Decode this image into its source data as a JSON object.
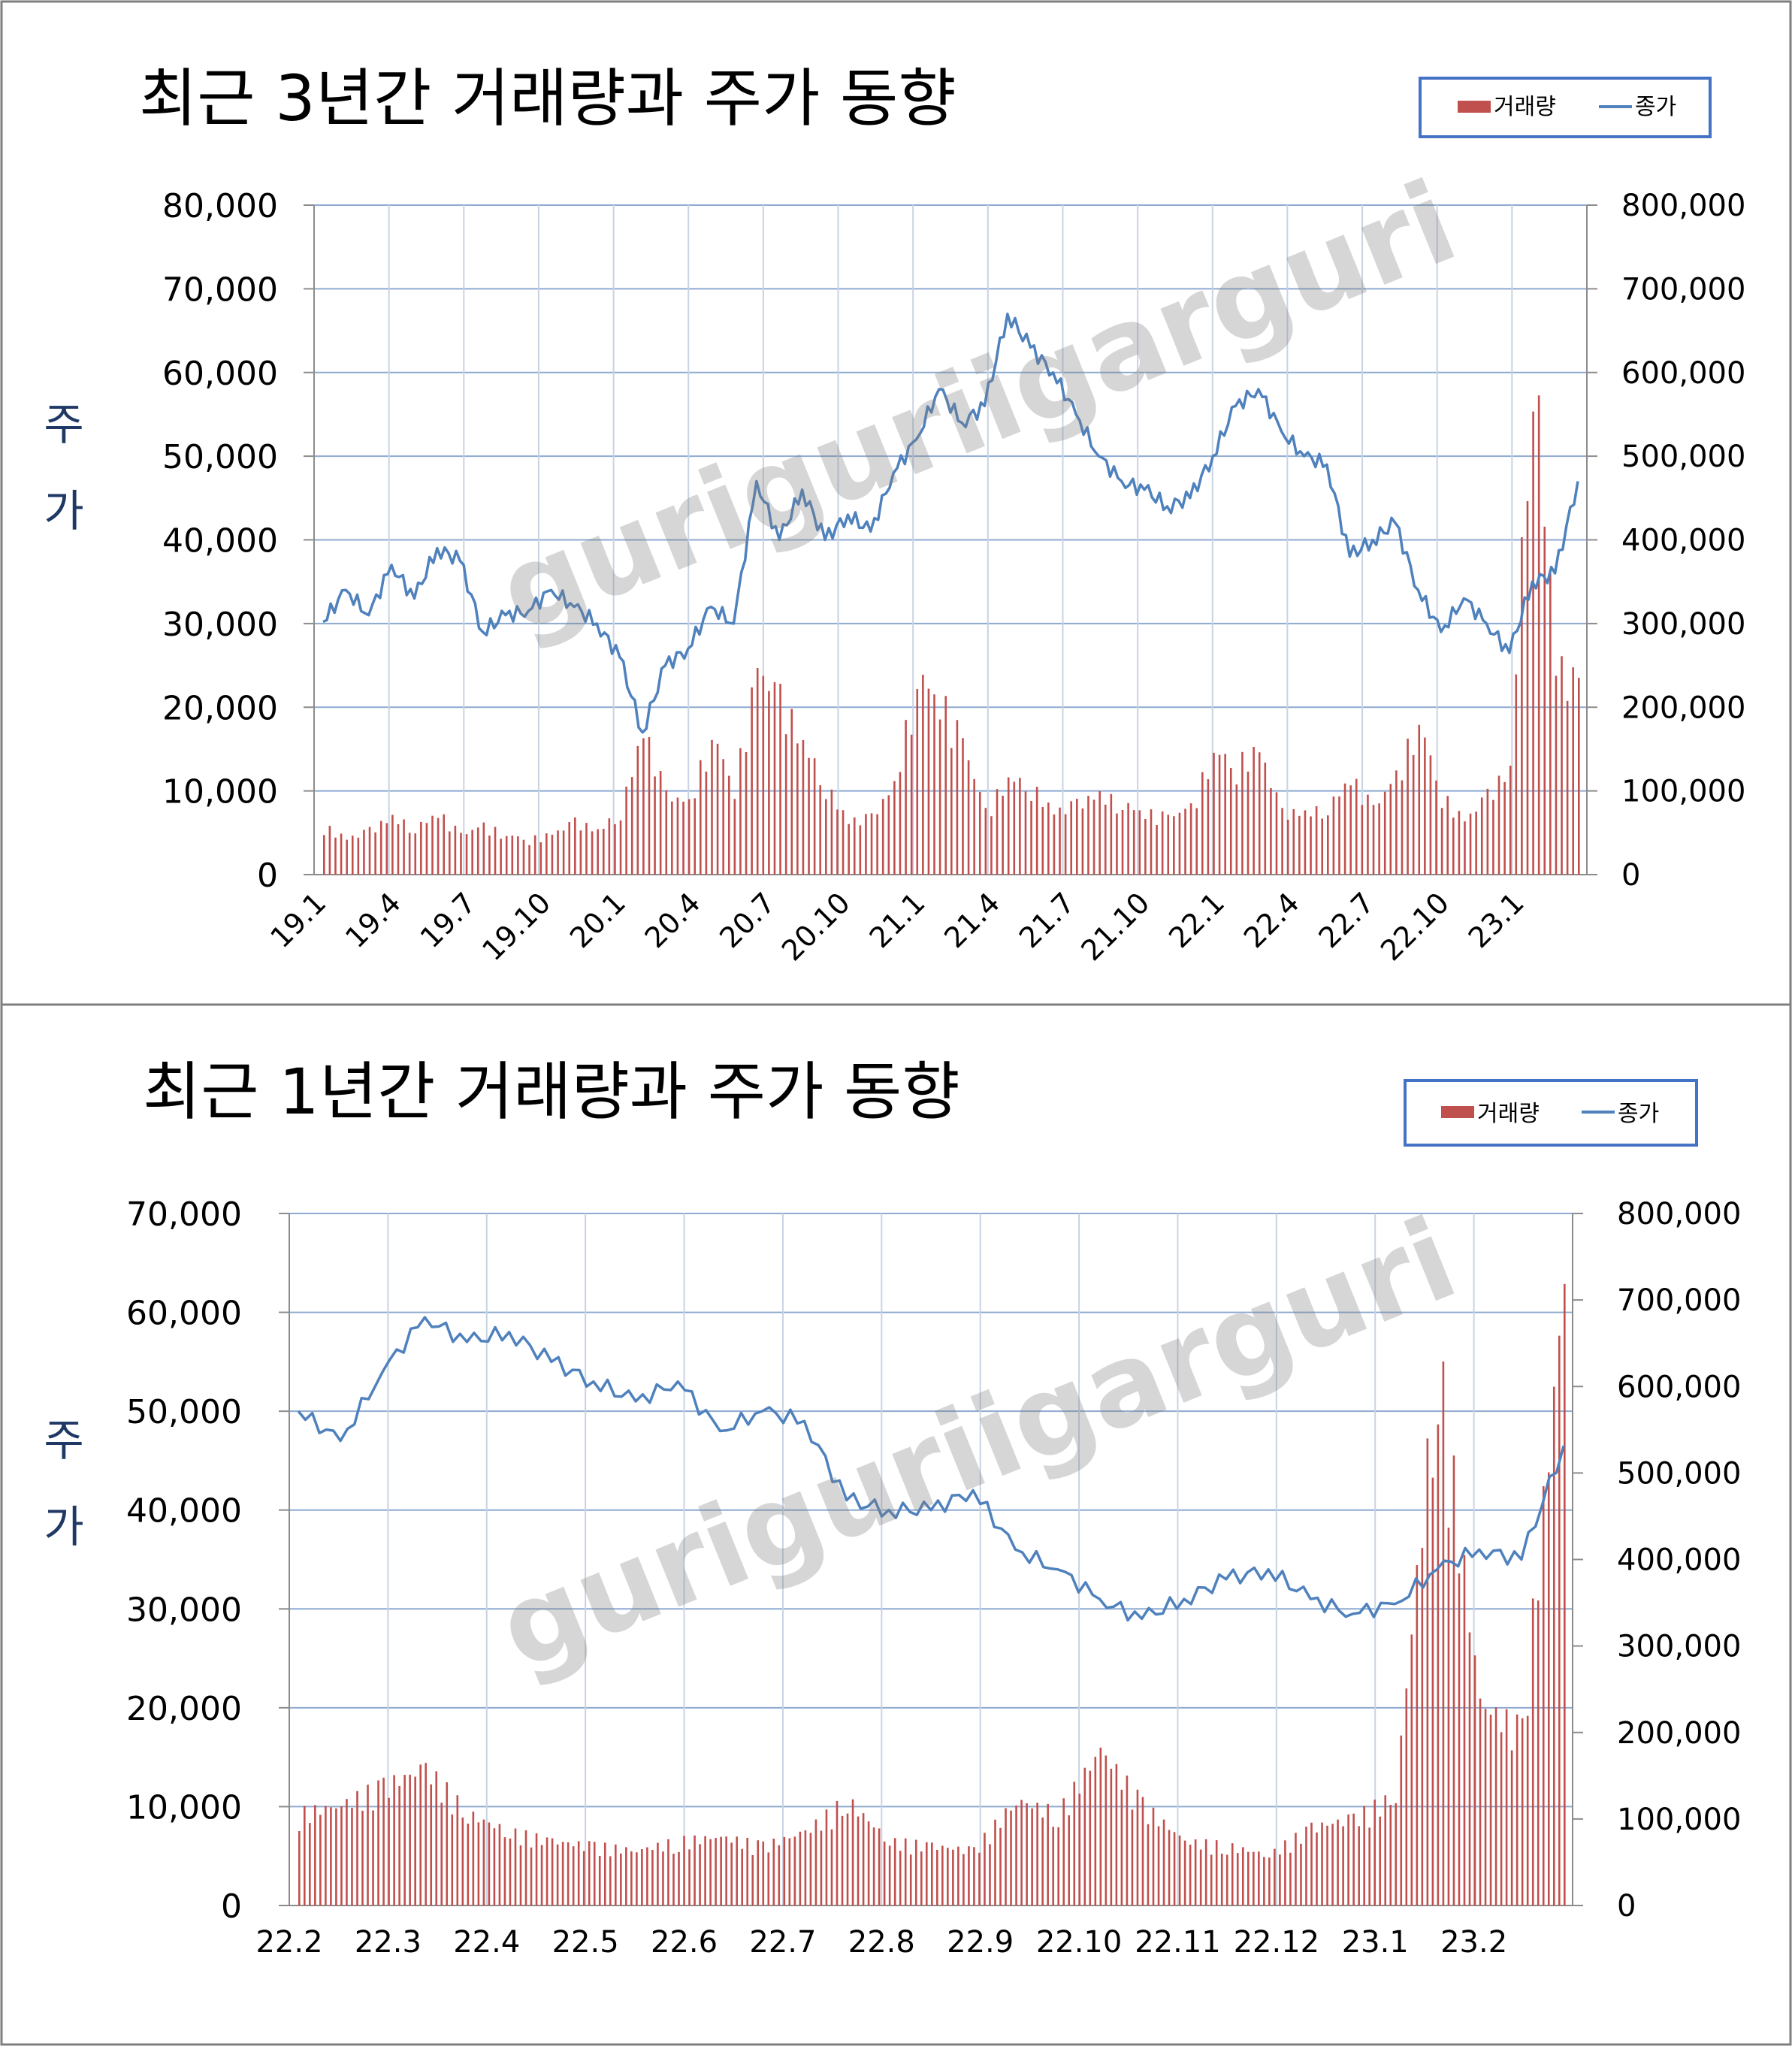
{
  "watermark": "guriguriigarguri",
  "colors": {
    "volume": "#c0504d",
    "close": "#4f81bd",
    "grid": "#8eaad0",
    "legend_border": "#4472c4",
    "axis_title": "#1f3864"
  },
  "chart_data": [
    {
      "type": "bar+line",
      "title": "최근 3년간 거래량과 주가 동향",
      "ylabel": "주가",
      "legend": {
        "placement": "top-right",
        "entries": [
          "거래량",
          "종가"
        ]
      },
      "grid": true,
      "x_ticks": [
        "19.1",
        "19.4",
        "19.7",
        "19.10",
        "20.1",
        "20.4",
        "20.7",
        "20.10",
        "21.1",
        "21.4",
        "21.7",
        "21.10",
        "22.1",
        "22.4",
        "22.7",
        "22.10",
        "23.1"
      ],
      "y_left": {
        "name": "종가",
        "range": [
          0,
          80000
        ],
        "ticks": [
          "0",
          "10,000",
          "20,000",
          "30,000",
          "40,000",
          "50,000",
          "60,000",
          "70,000",
          "80,000"
        ]
      },
      "y_right": {
        "name": "거래량",
        "range": [
          0,
          800000
        ],
        "ticks": [
          "0",
          "100,000",
          "200,000",
          "300,000",
          "400,000",
          "500,000",
          "600,000",
          "700,000",
          "800,000"
        ]
      },
      "series": [
        {
          "name": "종가",
          "axis": "left",
          "kind": "line",
          "points": [
            [
              "19.1",
              30200
            ],
            [
              "19.2",
              34000
            ],
            [
              "19.3",
              31000
            ],
            [
              "19.4",
              37000
            ],
            [
              "19.5",
              33000
            ],
            [
              "19.6",
              39000
            ],
            [
              "19.7",
              37500
            ],
            [
              "19.8",
              29000
            ],
            [
              "19.9",
              31000
            ],
            [
              "19.10",
              31500
            ],
            [
              "19.11",
              34000
            ],
            [
              "19.12",
              32000
            ],
            [
              "20.1",
              30000
            ],
            [
              "20.2",
              26000
            ],
            [
              "20.3",
              17000
            ],
            [
              "20.4",
              25000
            ],
            [
              "20.5",
              27000
            ],
            [
              "20.6",
              32000
            ],
            [
              "20.6b",
              30000
            ],
            [
              "20.7",
              47000
            ],
            [
              "20.7b",
              40000
            ],
            [
              "20.8",
              46000
            ],
            [
              "20.9",
              40000
            ],
            [
              "20.10",
              43000
            ],
            [
              "20.11",
              41000
            ],
            [
              "20.12",
              48000
            ],
            [
              "21.1",
              52000
            ],
            [
              "21.1b",
              58000
            ],
            [
              "21.2",
              54000
            ],
            [
              "21.3",
              56000
            ],
            [
              "21.4",
              67000
            ],
            [
              "21.5",
              63000
            ],
            [
              "21.6",
              60000
            ],
            [
              "21.7",
              55000
            ],
            [
              "21.8",
              50000
            ],
            [
              "21.9",
              47000
            ],
            [
              "21.10",
              46000
            ],
            [
              "21.11",
              44000
            ],
            [
              "21.12",
              45000
            ],
            [
              "22.1",
              50000
            ],
            [
              "22.2",
              56000
            ],
            [
              "22.3",
              58000
            ],
            [
              "22.4",
              53000
            ],
            [
              "22.5",
              50000
            ],
            [
              "22.6",
              49000
            ],
            [
              "22.6b",
              38000
            ],
            [
              "22.7",
              40000
            ],
            [
              "22.8",
              42000
            ],
            [
              "22.9",
              34000
            ],
            [
              "22.10",
              29000
            ],
            [
              "22.11",
              33000
            ],
            [
              "22.12",
              30000
            ],
            [
              "23.1",
              26500
            ],
            [
              "23.1b",
              35000
            ],
            [
              "23.2",
              36000
            ],
            [
              "23.2b",
              47000
            ]
          ]
        },
        {
          "name": "거래량",
          "axis": "right",
          "kind": "bar",
          "points": [
            [
              "19.1",
              55000
            ],
            [
              "19.2",
              40000
            ],
            [
              "19.3",
              50000
            ],
            [
              "19.4",
              65000
            ],
            [
              "19.5",
              52000
            ],
            [
              "19.6",
              70000
            ],
            [
              "19.7",
              45000
            ],
            [
              "19.8",
              55000
            ],
            [
              "19.9",
              45000
            ],
            [
              "19.10",
              40000
            ],
            [
              "19.11",
              45000
            ],
            [
              "19.12",
              60000
            ],
            [
              "20.1",
              50000
            ],
            [
              "20.2",
              70000
            ],
            [
              "20.3",
              165000
            ],
            [
              "20.4",
              90000
            ],
            [
              "20.5",
              80000
            ],
            [
              "20.6",
              160000
            ],
            [
              "20.6b",
              100000
            ],
            [
              "20.7",
              230000
            ],
            [
              "20.7b",
              200000
            ],
            [
              "20.8",
              150000
            ],
            [
              "20.9",
              100000
            ],
            [
              "20.10",
              60000
            ],
            [
              "20.11",
              65000
            ],
            [
              "20.12",
              100000
            ],
            [
              "21.1",
              225000
            ],
            [
              "21.1b",
              200000
            ],
            [
              "21.2",
              150000
            ],
            [
              "21.3",
              70000
            ],
            [
              "21.4",
              110000
            ],
            [
              "21.5",
              100000
            ],
            [
              "21.6",
              70000
            ],
            [
              "21.7",
              80000
            ],
            [
              "21.8",
              90000
            ],
            [
              "21.9",
              80000
            ],
            [
              "21.10",
              70000
            ],
            [
              "21.11",
              65000
            ],
            [
              "21.12",
              75000
            ],
            [
              "22.1",
              140000
            ],
            [
              "22.2",
              125000
            ],
            [
              "22.3",
              140000
            ],
            [
              "22.4",
              70000
            ],
            [
              "22.5",
              70000
            ],
            [
              "22.6",
              75000
            ],
            [
              "22.6b",
              110000
            ],
            [
              "22.7",
              75000
            ],
            [
              "22.8",
              110000
            ],
            [
              "22.9",
              175000
            ],
            [
              "22.10",
              90000
            ],
            [
              "22.11",
              60000
            ],
            [
              "22.12",
              90000
            ],
            [
              "23.1",
              120000
            ],
            [
              "23.1b",
              600000
            ],
            [
              "23.2",
              240000
            ],
            [
              "23.2b",
              210000
            ]
          ]
        }
      ]
    },
    {
      "type": "bar+line",
      "title": "최근 1년간 거래량과 주가 동향",
      "ylabel": "주가",
      "legend": {
        "placement": "top-right",
        "entries": [
          "거래량",
          "종가"
        ]
      },
      "grid": true,
      "x_ticks": [
        "22.2",
        "22.3",
        "22.4",
        "22.5",
        "22.6",
        "22.7",
        "22.8",
        "22.9",
        "22.10",
        "22.11",
        "22.12",
        "23.1",
        "23.2"
      ],
      "y_left": {
        "name": "종가",
        "range": [
          0,
          70000
        ],
        "ticks": [
          "0",
          "10,000",
          "20,000",
          "30,000",
          "40,000",
          "50,000",
          "60,000",
          "70,000"
        ]
      },
      "y_right": {
        "name": "거래량",
        "range": [
          0,
          800000
        ],
        "ticks": [
          "0",
          "100,000",
          "200,000",
          "300,000",
          "400,000",
          "500,000",
          "600,000",
          "700,000",
          "800,000"
        ]
      },
      "series": [
        {
          "name": "종가",
          "axis": "left",
          "kind": "line",
          "points": [
            [
              "22.2",
              50000
            ],
            [
              "22.2b",
              47000
            ],
            [
              "22.2c",
              54000
            ],
            [
              "22.3",
              59500
            ],
            [
              "22.3b",
              57000
            ],
            [
              "22.3c",
              58000
            ],
            [
              "22.4",
              55000
            ],
            [
              "22.4b",
              53000
            ],
            [
              "22.4c",
              51000
            ],
            [
              "22.5",
              53000
            ],
            [
              "22.5b",
              48000
            ],
            [
              "22.5c",
              50000
            ],
            [
              "22.6",
              49000
            ],
            [
              "22.6b",
              41000
            ],
            [
              "22.7",
              40000
            ],
            [
              "22.7b",
              40000
            ],
            [
              "22.8",
              42000
            ],
            [
              "22.8b",
              36000
            ],
            [
              "22.9",
              34000
            ],
            [
              "22.9b",
              31000
            ],
            [
              "22.10",
              29000
            ],
            [
              "22.10b",
              31000
            ],
            [
              "22.11",
              33000
            ],
            [
              "22.11b",
              34000
            ],
            [
              "22.12",
              31000
            ],
            [
              "22.12b",
              29500
            ],
            [
              "23.1",
              30500
            ],
            [
              "23.1b",
              34000
            ],
            [
              "23.1c",
              36000
            ],
            [
              "23.2",
              35000
            ],
            [
              "23.2b",
              46500
            ]
          ]
        },
        {
          "name": "거래량",
          "axis": "right",
          "kind": "bar",
          "points": [
            [
              "22.2",
              100000
            ],
            [
              "22.2b",
              110000
            ],
            [
              "22.2c",
              130000
            ],
            [
              "22.3",
              150000
            ],
            [
              "22.3b",
              100000
            ],
            [
              "22.3c",
              80000
            ],
            [
              "22.4",
              70000
            ],
            [
              "22.4b",
              65000
            ],
            [
              "22.4c",
              60000
            ],
            [
              "22.5",
              70000
            ],
            [
              "22.5b",
              75000
            ],
            [
              "22.5c",
              65000
            ],
            [
              "22.6",
              80000
            ],
            [
              "22.6b",
              115000
            ],
            [
              "22.7",
              70000
            ],
            [
              "22.7b",
              65000
            ],
            [
              "22.8",
              60000
            ],
            [
              "22.8b",
              115000
            ],
            [
              "22.9",
              100000
            ],
            [
              "22.9b",
              170000
            ],
            [
              "22.10",
              110000
            ],
            [
              "22.10b",
              70000
            ],
            [
              "22.11",
              65000
            ],
            [
              "22.11b",
              55000
            ],
            [
              "22.12",
              85000
            ],
            [
              "22.12b",
              95000
            ],
            [
              "23.1",
              120000
            ],
            [
              "23.1b",
              600000
            ],
            [
              "23.1c",
              220000
            ],
            [
              "23.2",
              190000
            ],
            [
              "23.2b",
              680000
            ]
          ]
        }
      ]
    }
  ]
}
